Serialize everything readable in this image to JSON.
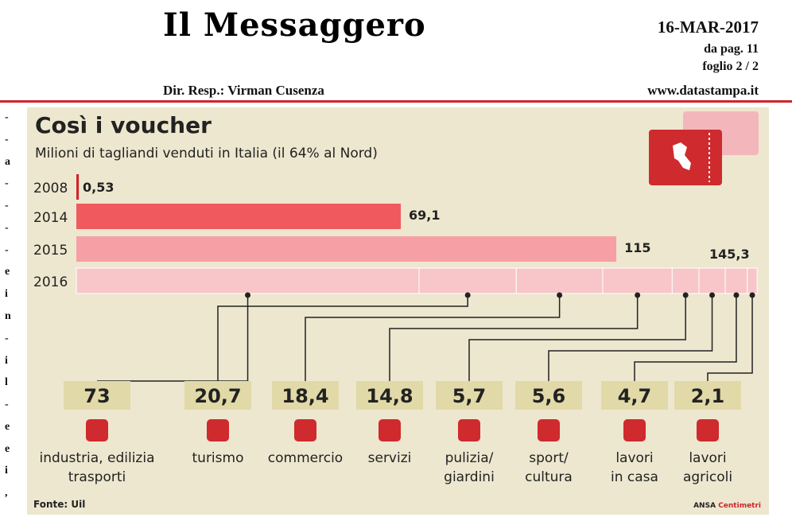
{
  "header": {
    "masthead": "Il Messaggero",
    "date": "16-MAR-2017",
    "page_ref": "da pag.  11",
    "sheet": "foglio 2 / 2",
    "director": "Dir. Resp.:  Virman Cusenza",
    "website": "www.datastampa.it"
  },
  "side_column_glyphs": [
    "-",
    "-",
    "a",
    "-",
    "-",
    "-",
    "-",
    "e",
    "i",
    "n",
    "-",
    "i",
    "l",
    "-",
    "e",
    "e",
    "i",
    ","
  ],
  "colors": {
    "accent": "#d0242a",
    "background": "#ede7cf",
    "bar_2014": "#f05a5e",
    "bar_2015": "#f6a0a6",
    "bar_2016": "#f8c6c8",
    "box": "#e2d9a8"
  },
  "chart_data": {
    "type": "bar",
    "title": "Così i voucher",
    "subtitle": "Milioni di tagliandi venduti in Italia (il 64% al Nord)",
    "categories": [
      "2008",
      "2014",
      "2015",
      "2016"
    ],
    "values": [
      0.53,
      69.1,
      115,
      145.3
    ],
    "value_labels": [
      "0,53",
      "69,1",
      "115",
      "145,3"
    ],
    "breakdown_2016": {
      "segments": [
        {
          "label": "industria, edilizia trasporti",
          "value": 73,
          "value_label": "73",
          "icon": "factory-icon"
        },
        {
          "label": "turismo",
          "value": 20.7,
          "value_label": "20,7",
          "icon": "globe-plane-icon"
        },
        {
          "label": "commercio",
          "value": 18.4,
          "value_label": "18,4",
          "icon": "shopping-cart-icon"
        },
        {
          "label": "servizi",
          "value": 14.8,
          "value_label": "14,8",
          "icon": "service-desk-icon"
        },
        {
          "label": "pulizia/ giardini",
          "value": 5.7,
          "value_label": "5,7",
          "icon": "garden-tools-icon"
        },
        {
          "label": "sport/ cultura",
          "value": 5.6,
          "value_label": "5,6",
          "icon": "volleyball-icon"
        },
        {
          "label": "lavori in casa",
          "value": 4.7,
          "value_label": "4,7",
          "icon": "washing-machine-icon"
        },
        {
          "label": "lavori agricoli",
          "value": 2.1,
          "value_label": "2,1",
          "icon": "corn-icon"
        }
      ]
    },
    "source": "Fonte: Uil",
    "credit_prefix": "ANSA",
    "credit_suffix": "Centimetri",
    "xlim": [
      0,
      145.3
    ],
    "grid": false,
    "legend": "none"
  }
}
